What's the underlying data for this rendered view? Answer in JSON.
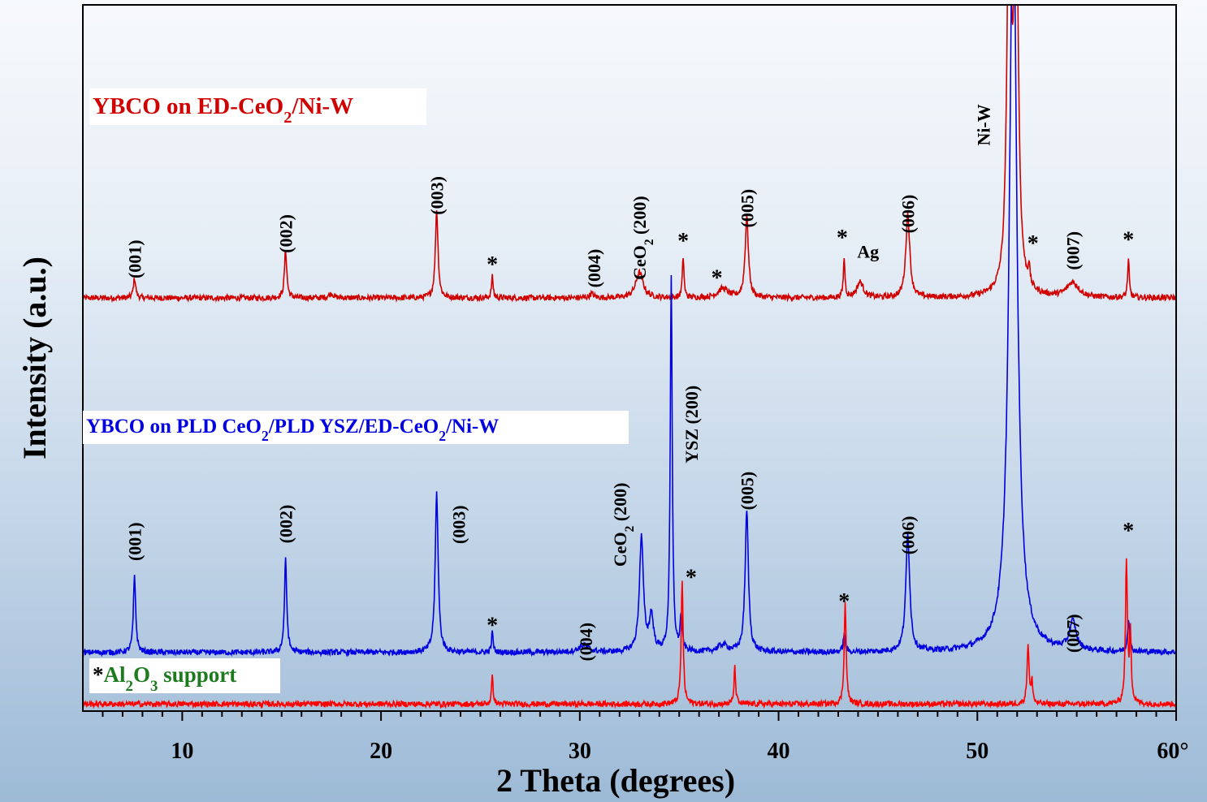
{
  "chart_data": {
    "type": "line",
    "xlabel": "2 Theta (degrees)",
    "ylabel": "Intensity (a.u.)",
    "xlim": [
      5,
      60
    ],
    "x_ticks": [
      {
        "v": 10,
        "label": "10"
      },
      {
        "v": 20,
        "label": "20"
      },
      {
        "v": 30,
        "label": "30"
      },
      {
        "v": 40,
        "label": "40"
      },
      {
        "v": 50,
        "label": "50"
      },
      {
        "v": 60,
        "label": "60°"
      }
    ],
    "y_ticks": "none",
    "series": [
      {
        "name": "YBCO on ED-CeO2/Ni-W",
        "label_parts": [
          {
            "t": "YBCO on ED-CeO"
          },
          {
            "t": "2",
            "sub": true
          },
          {
            "t": "/Ni-W"
          }
        ],
        "color": "#d10000",
        "baseline": 0.585,
        "peaks": [
          {
            "x": 7.6,
            "h": 0.028,
            "w": 0.07
          },
          {
            "x": 15.2,
            "h": 0.068,
            "w": 0.07
          },
          {
            "x": 17.5,
            "h": 0.006,
            "w": 0.15
          },
          {
            "x": 22.8,
            "h": 0.125,
            "w": 0.08
          },
          {
            "x": 25.6,
            "h": 0.03,
            "w": 0.05
          },
          {
            "x": 30.6,
            "h": 0.006,
            "w": 0.12
          },
          {
            "x": 33.0,
            "h": 0.036,
            "w": 0.22
          },
          {
            "x": 35.2,
            "h": 0.058,
            "w": 0.05
          },
          {
            "x": 37.2,
            "h": 0.013,
            "w": 0.3
          },
          {
            "x": 38.4,
            "h": 0.114,
            "w": 0.1
          },
          {
            "x": 43.3,
            "h": 0.055,
            "w": 0.05
          },
          {
            "x": 44.1,
            "h": 0.022,
            "w": 0.2
          },
          {
            "x": 46.5,
            "h": 0.118,
            "w": 0.12
          },
          {
            "x": 51.6,
            "h": 0.6,
            "w": 0.12
          },
          {
            "x": 51.95,
            "h": 0.6,
            "w": 0.12
          },
          {
            "x": 52.6,
            "h": 0.026,
            "w": 0.05
          },
          {
            "x": 54.8,
            "h": 0.021,
            "w": 0.35
          },
          {
            "x": 57.6,
            "h": 0.053,
            "w": 0.05
          }
        ],
        "annotations": [
          {
            "x": 7.6,
            "y": 0.64,
            "text": "(001)",
            "rot": true
          },
          {
            "x": 15.2,
            "y": 0.676,
            "text": "(002)",
            "rot": true
          },
          {
            "x": 22.8,
            "y": 0.73,
            "text": "(003)",
            "rot": true
          },
          {
            "x": 25.6,
            "y": 0.622,
            "text": "*"
          },
          {
            "x": 30.7,
            "y": 0.627,
            "text": "(004)",
            "rot": true
          },
          {
            "x": 33.0,
            "y": 0.67,
            "parts": [
              {
                "t": "CeO"
              },
              {
                "t": "2",
                "sub": true
              },
              {
                "t": " (200)"
              }
            ],
            "rot": true
          },
          {
            "x": 35.2,
            "y": 0.655,
            "text": "*"
          },
          {
            "x": 36.9,
            "y": 0.603,
            "text": "*"
          },
          {
            "x": 38.4,
            "y": 0.712,
            "text": "(005)",
            "rot": true
          },
          {
            "x": 43.2,
            "y": 0.66,
            "text": "*"
          },
          {
            "x": 44.5,
            "y": 0.642,
            "text": "Ag"
          },
          {
            "x": 46.5,
            "y": 0.704,
            "text": "(006)",
            "rot": true
          },
          {
            "x": 50.3,
            "y": 0.83,
            "text": "Ni-W",
            "rot": true
          },
          {
            "x": 52.8,
            "y": 0.652,
            "text": "*"
          },
          {
            "x": 54.8,
            "y": 0.652,
            "text": "(007)",
            "rot": true
          },
          {
            "x": 57.6,
            "y": 0.657,
            "text": "*"
          }
        ]
      },
      {
        "name": "YBCO on PLD CeO2/PLD YSZ/ED-CeO2/Ni-W",
        "label_parts": [
          {
            "t": "YBCO on PLD CeO"
          },
          {
            "t": "2",
            "sub": true
          },
          {
            "t": "/PLD YSZ/ED-CeO"
          },
          {
            "t": "2",
            "sub": true
          },
          {
            "t": "/Ni-W"
          }
        ],
        "color": "#0000e0",
        "baseline": 0.083,
        "peaks": [
          {
            "x": 7.6,
            "h": 0.107,
            "w": 0.07
          },
          {
            "x": 15.2,
            "h": 0.131,
            "w": 0.07
          },
          {
            "x": 22.8,
            "h": 0.226,
            "w": 0.09
          },
          {
            "x": 25.6,
            "h": 0.028,
            "w": 0.05
          },
          {
            "x": 30.2,
            "h": 0.01,
            "w": 0.3
          },
          {
            "x": 33.1,
            "h": 0.162,
            "w": 0.12
          },
          {
            "x": 33.6,
            "h": 0.05,
            "w": 0.12
          },
          {
            "x": 34.6,
            "h": 0.53,
            "w": 0.06
          },
          {
            "x": 35.1,
            "h": 0.05,
            "w": 0.06
          },
          {
            "x": 37.2,
            "h": 0.01,
            "w": 0.3
          },
          {
            "x": 38.4,
            "h": 0.2,
            "w": 0.1
          },
          {
            "x": 43.3,
            "h": 0.025,
            "w": 0.06
          },
          {
            "x": 46.5,
            "h": 0.165,
            "w": 0.12
          },
          {
            "x": 51.8,
            "h": 1.1,
            "w": 0.22
          },
          {
            "x": 54.8,
            "h": 0.04,
            "w": 0.2
          },
          {
            "x": 57.6,
            "h": 0.048,
            "w": 0.06
          }
        ],
        "annotations": [
          {
            "x": 7.6,
            "y": 0.24,
            "text": "(001)",
            "rot": true
          },
          {
            "x": 15.2,
            "y": 0.265,
            "text": "(002)",
            "rot": true
          },
          {
            "x": 23.9,
            "y": 0.264,
            "text": "(003)",
            "rot": true
          },
          {
            "x": 25.6,
            "y": 0.111,
            "text": "*"
          },
          {
            "x": 30.3,
            "y": 0.098,
            "text": "(004)",
            "rot": true
          },
          {
            "x": 32.0,
            "y": 0.264,
            "parts": [
              {
                "t": "CeO"
              },
              {
                "t": "2",
                "sub": true
              },
              {
                "t": " (200)"
              }
            ],
            "rot": true
          },
          {
            "x": 35.6,
            "y": 0.406,
            "text": "YSZ (200)",
            "rot": true
          },
          {
            "x": 35.6,
            "y": 0.179,
            "text": "*"
          },
          {
            "x": 38.4,
            "y": 0.312,
            "text": "(005)",
            "rot": true
          },
          {
            "x": 43.3,
            "y": 0.145,
            "text": "*"
          },
          {
            "x": 46.5,
            "y": 0.249,
            "text": "(006)",
            "rot": true
          },
          {
            "x": 54.8,
            "y": 0.11,
            "text": "(007)",
            "rot": true
          },
          {
            "x": 57.6,
            "y": 0.245,
            "text": "*"
          }
        ]
      },
      {
        "name": "Al2O3 support",
        "label_parts": [
          {
            "t": "*",
            "color": "#000000"
          },
          {
            "t": "Al"
          },
          {
            "t": "2",
            "sub": true
          },
          {
            "t": "O"
          },
          {
            "t": "3",
            "sub": true
          },
          {
            "t": " support"
          }
        ],
        "color": "#ff0000",
        "label_color": "#1e7a1e",
        "baseline": 0.01,
        "peaks": [
          {
            "x": 25.6,
            "h": 0.038,
            "w": 0.05
          },
          {
            "x": 35.15,
            "h": 0.172,
            "w": 0.06
          },
          {
            "x": 37.8,
            "h": 0.052,
            "w": 0.05
          },
          {
            "x": 43.35,
            "h": 0.143,
            "w": 0.06
          },
          {
            "x": 52.55,
            "h": 0.085,
            "w": 0.06
          },
          {
            "x": 52.75,
            "h": 0.03,
            "w": 0.05
          },
          {
            "x": 57.5,
            "h": 0.2,
            "w": 0.06
          },
          {
            "x": 57.7,
            "h": 0.1,
            "w": 0.05
          }
        ],
        "annotations": []
      }
    ]
  }
}
